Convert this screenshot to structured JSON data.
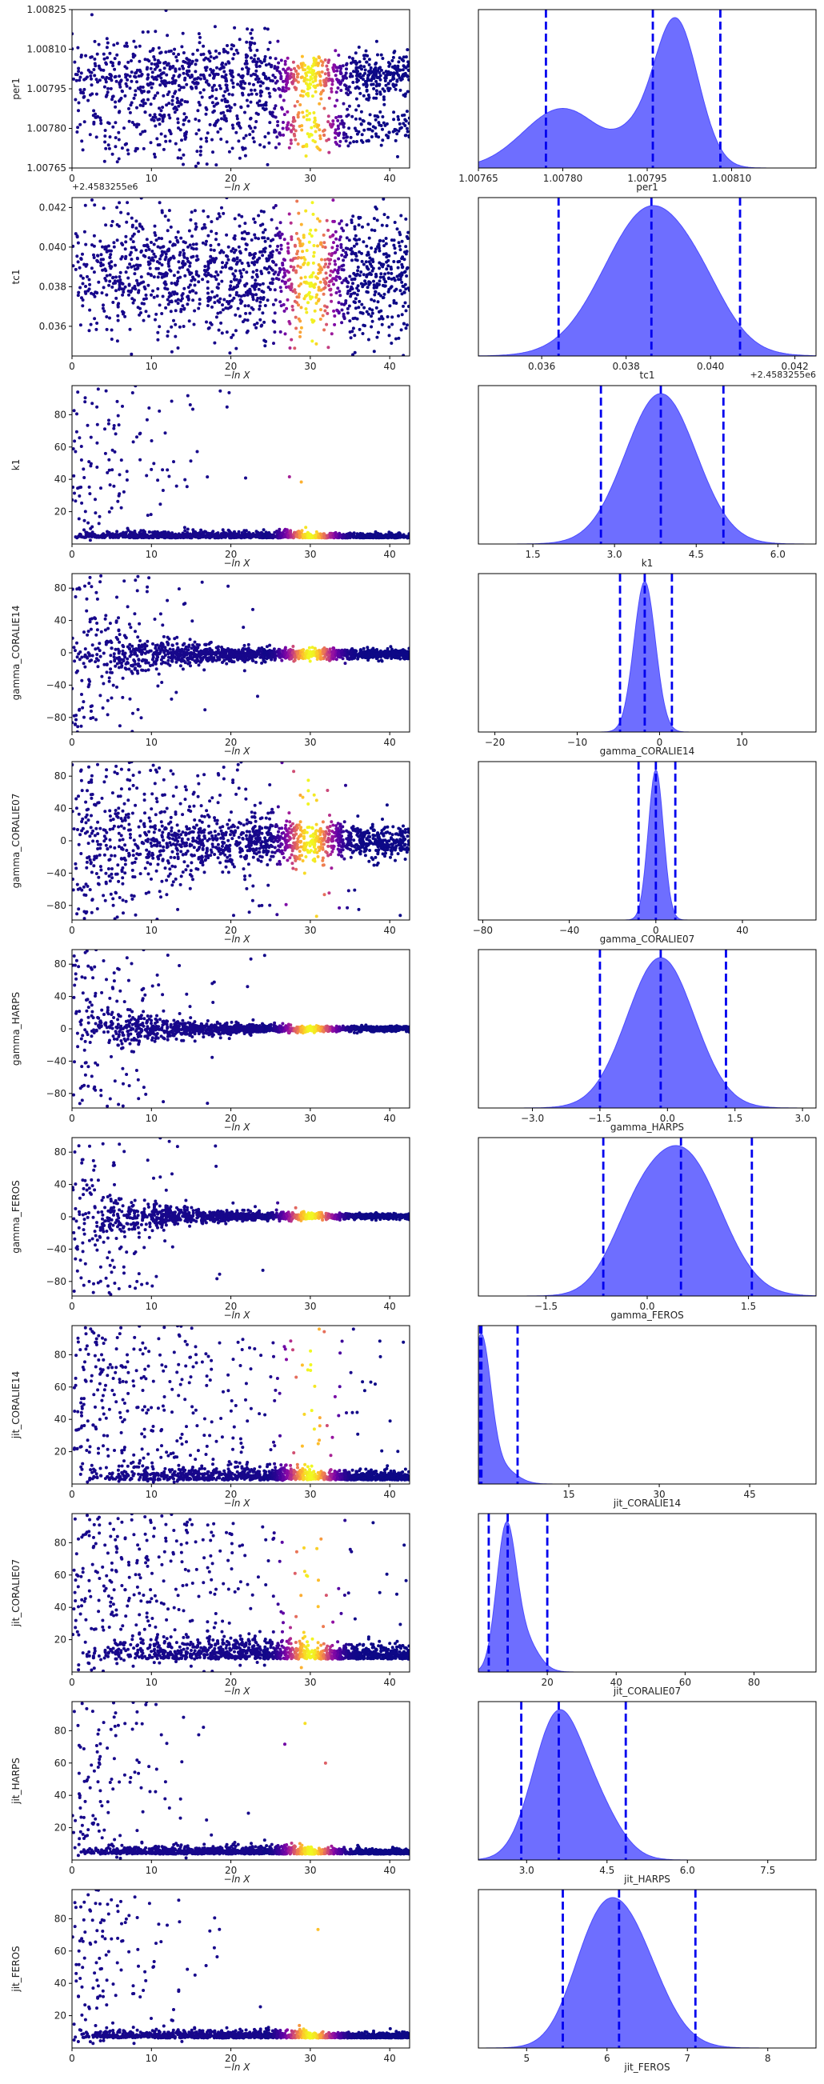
{
  "chart_data": [
    {
      "type": "scatter",
      "param": "per1",
      "ylabel": "per1",
      "xlabel": "−ln X",
      "xlim": [
        0,
        42.5
      ],
      "xticks": [
        "0",
        "10",
        "20",
        "30",
        "40"
      ],
      "xtick_values": [
        0,
        10,
        20,
        30,
        40
      ],
      "ylim": [
        1.00765,
        1.00825
      ],
      "yticks": [
        "1.00825",
        "1.00810",
        "1.00795",
        "1.00780",
        "1.00765"
      ],
      "ytick_values": [
        1.00825,
        1.0081,
        1.00795,
        1.0078,
        1.00765
      ],
      "offset_label": "+2.4583255e6",
      "y_center": 1.00797,
      "y_spread": 0.00024,
      "bimodal": true,
      "colormap": "plasma"
    },
    {
      "type": "area",
      "param": "per1",
      "xlabel": "per1",
      "xlim": [
        1.00765,
        1.00825
      ],
      "xticks": [
        "1.00765",
        "1.00780",
        "1.00795",
        "1.00810"
      ],
      "xtick_values": [
        1.00765,
        1.0078,
        1.00795,
        1.0081
      ],
      "peaks": [
        [
          1.0078,
          7e-05,
          0.38
        ],
        [
          1.00792,
          3e-05,
          0.1
        ],
        [
          1.008,
          4e-05,
          0.95
        ]
      ],
      "quantiles": [
        1.00777,
        1.00796,
        1.00808
      ]
    },
    {
      "type": "scatter",
      "param": "tc1",
      "ylabel": "tc1",
      "xlabel": "−ln X",
      "xlim": [
        0,
        42.5
      ],
      "xticks": [
        "0",
        "10",
        "20",
        "30",
        "40"
      ],
      "xtick_values": [
        0,
        10,
        20,
        30,
        40
      ],
      "ylim": [
        0.0345,
        0.0425
      ],
      "yticks": [
        "0.042",
        "0.040",
        "0.038",
        "0.036"
      ],
      "ytick_values": [
        0.042,
        0.04,
        0.038,
        0.036
      ],
      "y_center": 0.0386,
      "y_spread": 0.0032,
      "colormap": "plasma"
    },
    {
      "type": "area",
      "param": "tc1",
      "xlabel": "tc1",
      "xlim": [
        0.0345,
        0.0425
      ],
      "xticks": [
        "0.036",
        "0.038",
        "0.040",
        "0.042"
      ],
      "xtick_values": [
        0.036,
        0.038,
        0.04,
        0.042
      ],
      "offset_label": "+2.4583255e6",
      "peaks": [
        [
          0.0386,
          0.0011,
          1.0
        ],
        [
          0.0399,
          0.0006,
          0.1
        ]
      ],
      "quantiles": [
        0.0364,
        0.0386,
        0.0407
      ]
    },
    {
      "type": "scatter",
      "param": "k1",
      "ylabel": "k1",
      "xlabel": "−ln X",
      "xlim": [
        0,
        42.5
      ],
      "xticks": [
        "0",
        "10",
        "20",
        "30",
        "40"
      ],
      "xtick_values": [
        0,
        10,
        20,
        30,
        40
      ],
      "ylim": [
        0,
        98
      ],
      "yticks": [
        "80",
        "60",
        "40",
        "20"
      ],
      "ytick_values": [
        80,
        60,
        40,
        20
      ],
      "y_center": 3.8,
      "y_spread": 1.2,
      "decay": "one-sided",
      "colormap": "plasma"
    },
    {
      "type": "area",
      "param": "k1",
      "xlabel": "k1",
      "xlim": [
        0.5,
        6.7
      ],
      "xticks": [
        "1.5",
        "3.0",
        "4.5",
        "6.0"
      ],
      "xtick_values": [
        1.5,
        3.0,
        4.5,
        6.0
      ],
      "peaks": [
        [
          3.85,
          0.65,
          1.0
        ]
      ],
      "quantiles": [
        2.75,
        3.85,
        5.0
      ]
    },
    {
      "type": "scatter",
      "param": "gamma_CORALIE14",
      "ylabel": "gamma_CORALIE14",
      "xlabel": "−ln X",
      "xlim": [
        0,
        42.5
      ],
      "xticks": [
        "0",
        "10",
        "20",
        "30",
        "40"
      ],
      "xtick_values": [
        0,
        10,
        20,
        30,
        40
      ],
      "ylim": [
        -98,
        98
      ],
      "yticks": [
        "80",
        "40",
        "0",
        "−40",
        "−80"
      ],
      "ytick_values": [
        80,
        40,
        0,
        -40,
        -80
      ],
      "y_center": -1.5,
      "y_spread": 3,
      "decay": "symmetric",
      "colormap": "plasma"
    },
    {
      "type": "area",
      "param": "gamma_CORALIE14",
      "xlabel": "gamma_CORALIE14",
      "xlim": [
        -22,
        19
      ],
      "xticks": [
        "−20",
        "−10",
        "0",
        "10"
      ],
      "xtick_values": [
        -20,
        -10,
        0,
        10
      ],
      "peaks": [
        [
          -1.8,
          1.3,
          1.0
        ]
      ],
      "quantiles": [
        -4.8,
        -1.8,
        1.5
      ]
    },
    {
      "type": "scatter",
      "param": "gamma_CORALIE07",
      "ylabel": "gamma_CORALIE07",
      "xlabel": "−ln X",
      "xlim": [
        0,
        42.5
      ],
      "xticks": [
        "0",
        "10",
        "20",
        "30",
        "40"
      ],
      "xtick_values": [
        0,
        10,
        20,
        30,
        40
      ],
      "ylim": [
        -98,
        98
      ],
      "yticks": [
        "80",
        "40",
        "0",
        "−40",
        "−80"
      ],
      "ytick_values": [
        80,
        40,
        0,
        -40,
        -80
      ],
      "y_center": 0,
      "y_spread": 8,
      "decay": "symmetric-slow",
      "colormap": "plasma"
    },
    {
      "type": "area",
      "param": "gamma_CORALIE07",
      "xlabel": "gamma_CORALIE07",
      "xlim": [
        -82,
        74
      ],
      "xticks": [
        "−80",
        "−40",
        "0",
        "40"
      ],
      "xtick_values": [
        -80,
        -40,
        0,
        40
      ],
      "peaks": [
        [
          0,
          3.5,
          1.0
        ]
      ],
      "quantiles": [
        -8,
        0,
        9
      ]
    },
    {
      "type": "scatter",
      "param": "gamma_HARPS",
      "ylabel": "gamma_HARPS",
      "xlabel": "−ln X",
      "xlim": [
        0,
        42.5
      ],
      "xticks": [
        "0",
        "10",
        "20",
        "30",
        "40"
      ],
      "xtick_values": [
        0,
        10,
        20,
        30,
        40
      ],
      "ylim": [
        -98,
        98
      ],
      "yticks": [
        "80",
        "40",
        "0",
        "−40",
        "−80"
      ],
      "ytick_values": [
        80,
        40,
        0,
        -40,
        -80
      ],
      "y_center": -0.1,
      "y_spread": 1.5,
      "decay": "symmetric",
      "colormap": "plasma"
    },
    {
      "type": "area",
      "param": "gamma_HARPS",
      "xlabel": "gamma_HARPS",
      "xlim": [
        -4.2,
        3.3
      ],
      "xticks": [
        "−3.0",
        "−1.5",
        "0.0",
        "1.5",
        "3.0"
      ],
      "xtick_values": [
        -3.0,
        -1.5,
        0.0,
        1.5,
        3.0
      ],
      "peaks": [
        [
          -0.15,
          0.75,
          1.0
        ]
      ],
      "quantiles": [
        -1.5,
        -0.15,
        1.3
      ]
    },
    {
      "type": "scatter",
      "param": "gamma_FEROS",
      "ylabel": "gamma_FEROS",
      "xlabel": "−ln X",
      "xlim": [
        0,
        42.5
      ],
      "xticks": [
        "0",
        "10",
        "20",
        "30",
        "40"
      ],
      "xtick_values": [
        0,
        10,
        20,
        30,
        40
      ],
      "ylim": [
        -98,
        98
      ],
      "yticks": [
        "80",
        "40",
        "0",
        "−40",
        "−80"
      ],
      "ytick_values": [
        80,
        40,
        0,
        -40,
        -80
      ],
      "y_center": 0.5,
      "y_spread": 1.5,
      "decay": "symmetric",
      "colormap": "plasma"
    },
    {
      "type": "area",
      "param": "gamma_FEROS",
      "xlabel": "gamma_FEROS",
      "xlim": [
        -2.5,
        2.5
      ],
      "xticks": [
        "−1.5",
        "0.0",
        "1.5"
      ],
      "xtick_values": [
        -1.5,
        0.0,
        1.5
      ],
      "peaks": [
        [
          0.55,
          0.55,
          1.0
        ],
        [
          -0.2,
          0.4,
          0.35
        ]
      ],
      "quantiles": [
        -0.65,
        0.5,
        1.55
      ]
    },
    {
      "type": "scatter",
      "param": "jit_CORALIE14",
      "ylabel": "jit_CORALIE14",
      "xlabel": "−ln X",
      "xlim": [
        0,
        42.5
      ],
      "xticks": [
        "0",
        "10",
        "20",
        "30",
        "40"
      ],
      "xtick_values": [
        0,
        10,
        20,
        30,
        40
      ],
      "ylim": [
        0,
        98
      ],
      "yticks": [
        "80",
        "60",
        "40",
        "20"
      ],
      "ytick_values": [
        80,
        60,
        40,
        20
      ],
      "y_center": 2.5,
      "y_spread": 2.5,
      "decay": "one-sided-slow",
      "colormap": "plasma"
    },
    {
      "type": "area",
      "param": "jit_CORALIE14",
      "xlabel": "jit_CORALIE14",
      "xlim": [
        0,
        56
      ],
      "xticks": [
        "15",
        "30",
        "45"
      ],
      "xtick_values": [
        15,
        30,
        45
      ],
      "peaks": [
        [
          0.4,
          1.6,
          1.0
        ],
        [
          3.5,
          2.5,
          0.12
        ]
      ],
      "quantiles": [
        0.3,
        0.5,
        6.5
      ]
    },
    {
      "type": "scatter",
      "param": "jit_CORALIE07",
      "ylabel": "jit_CORALIE07",
      "xlabel": "−ln X",
      "xlim": [
        0,
        42.5
      ],
      "xticks": [
        "0",
        "10",
        "20",
        "30",
        "40"
      ],
      "xtick_values": [
        0,
        10,
        20,
        30,
        40
      ],
      "ylim": [
        0,
        98
      ],
      "yticks": [
        "80",
        "60",
        "40",
        "20"
      ],
      "ytick_values": [
        80,
        60,
        40,
        20
      ],
      "y_center": 8,
      "y_spread": 4,
      "decay": "one-sided-slow",
      "colormap": "plasma"
    },
    {
      "type": "area",
      "param": "jit_CORALIE07",
      "xlabel": "jit_CORALIE07",
      "xlim": [
        0,
        98
      ],
      "xticks": [
        "20",
        "40",
        "60",
        "80"
      ],
      "xtick_values": [
        20,
        40,
        60,
        80
      ],
      "peaks": [
        [
          8,
          2.8,
          1.0
        ],
        [
          13,
          4,
          0.25
        ]
      ],
      "quantiles": [
        3,
        8.5,
        20
      ]
    },
    {
      "type": "scatter",
      "param": "jit_HARPS",
      "ylabel": "jit_HARPS",
      "xlabel": "−ln X",
      "xlim": [
        0,
        42.5
      ],
      "xticks": [
        "0",
        "10",
        "20",
        "30",
        "40"
      ],
      "xtick_values": [
        0,
        10,
        20,
        30,
        40
      ],
      "ylim": [
        0,
        98
      ],
      "yticks": [
        "80",
        "60",
        "40",
        "20"
      ],
      "ytick_values": [
        80,
        60,
        40,
        20
      ],
      "y_center": 3.7,
      "y_spread": 1.5,
      "decay": "one-sided",
      "colormap": "plasma"
    },
    {
      "type": "area",
      "param": "jit_HARPS",
      "xlabel": "jit_HARPS",
      "xlim": [
        2.1,
        8.4
      ],
      "xticks": [
        "3.0",
        "4.5",
        "6.0",
        "7.5"
      ],
      "xtick_values": [
        3.0,
        4.5,
        6.0,
        7.5
      ],
      "peaks": [
        [
          3.55,
          0.45,
          1.0
        ],
        [
          4.3,
          0.45,
          0.35
        ]
      ],
      "quantiles": [
        2.9,
        3.6,
        4.85
      ]
    },
    {
      "type": "scatter",
      "param": "jit_FEROS",
      "ylabel": "jit_FEROS",
      "xlabel": "−ln X",
      "xlim": [
        0,
        42.5
      ],
      "xticks": [
        "0",
        "10",
        "20",
        "30",
        "40"
      ],
      "xtick_values": [
        0,
        10,
        20,
        30,
        40
      ],
      "ylim": [
        0,
        98
      ],
      "yticks": [
        "80",
        "60",
        "40",
        "20"
      ],
      "ytick_values": [
        80,
        60,
        40,
        20
      ],
      "y_center": 6.2,
      "y_spread": 1.5,
      "decay": "one-sided",
      "colormap": "plasma"
    },
    {
      "type": "area",
      "param": "jit_FEROS",
      "xlabel": "jit_FEROS",
      "xlim": [
        4.4,
        8.6
      ],
      "xticks": [
        "5",
        "6",
        "7",
        "8"
      ],
      "xtick_values": [
        5,
        6,
        7,
        8
      ],
      "peaks": [
        [
          6.2,
          0.42,
          1.0
        ],
        [
          5.8,
          0.3,
          0.35
        ]
      ],
      "quantiles": [
        5.45,
        6.15,
        7.1
      ]
    }
  ],
  "colors": {
    "hist_fill": "#6666ff",
    "hist_line": "#4b4bff",
    "quantile_line": "#0000ee",
    "scatter_base": "#1a0a8a"
  }
}
